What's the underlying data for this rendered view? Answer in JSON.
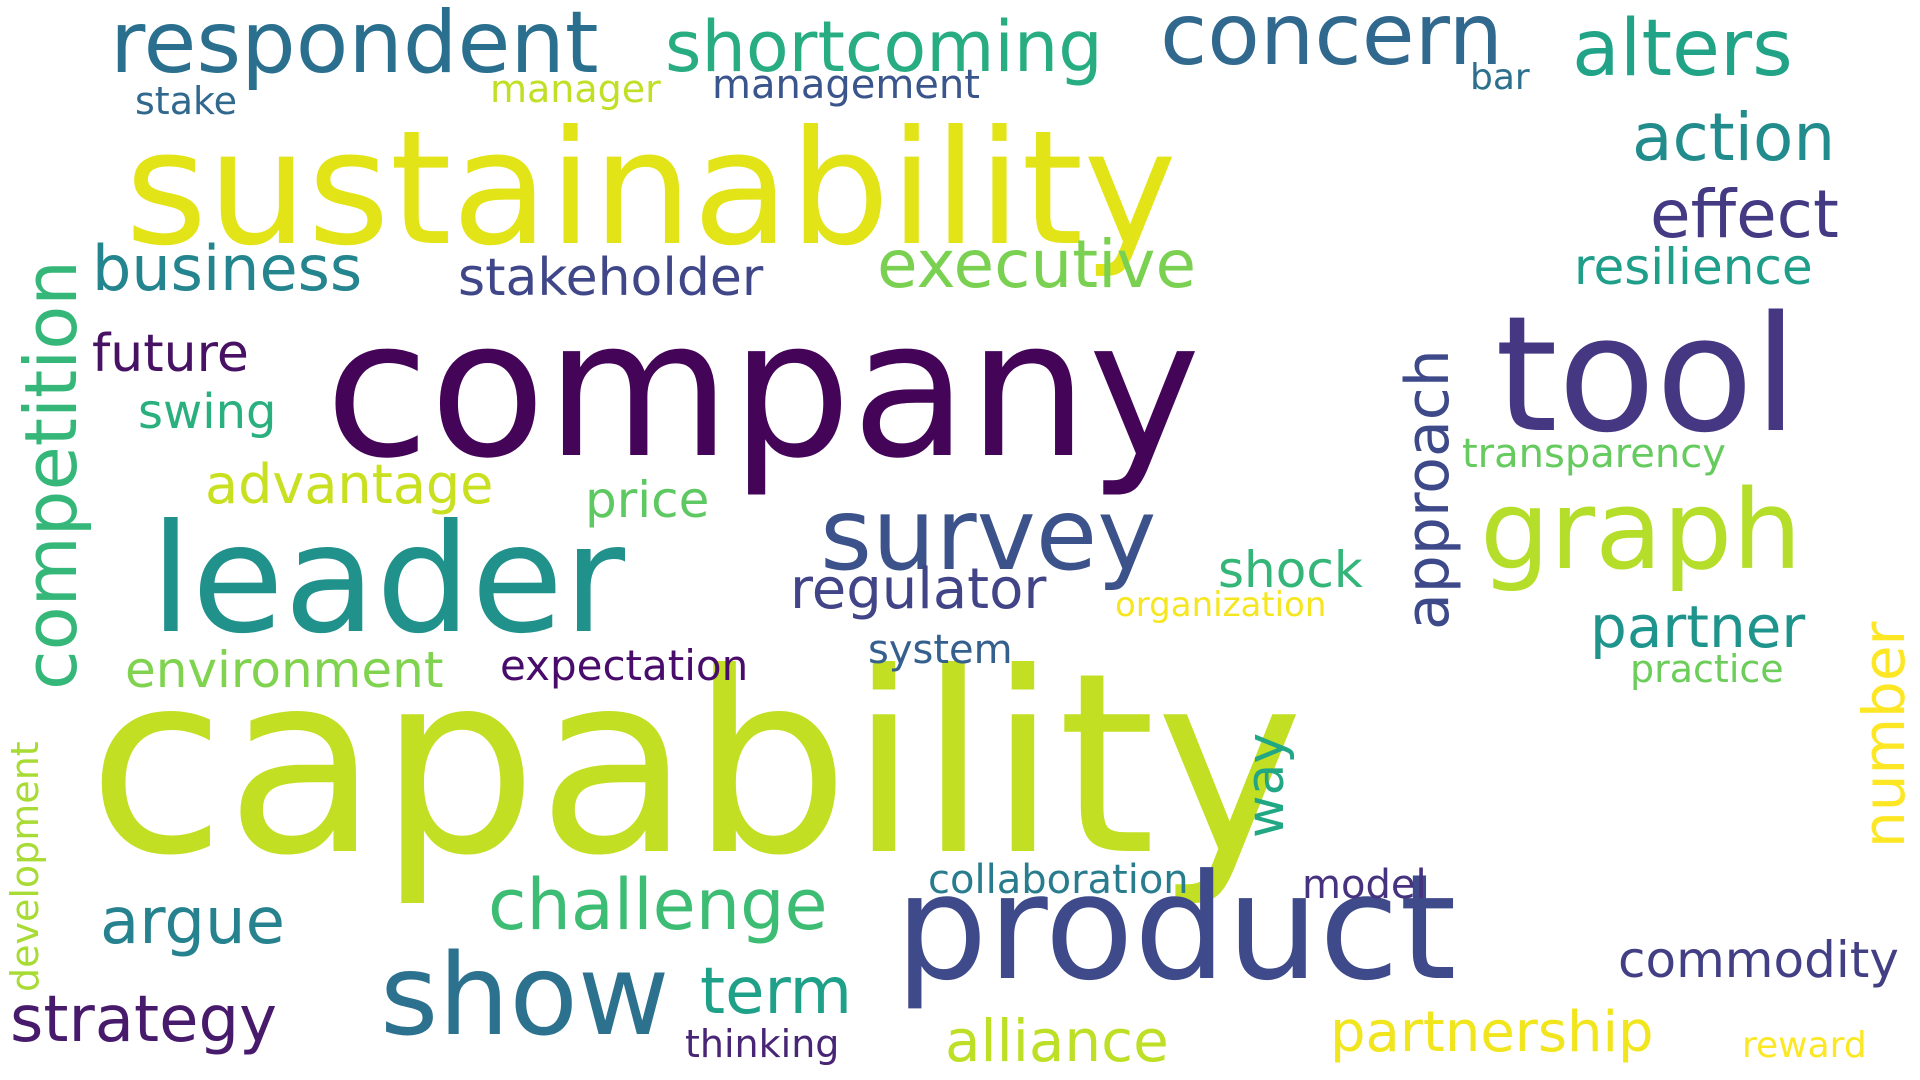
{
  "words": [
    {
      "text": "capability",
      "color": "#c2df23"
    },
    {
      "text": "company",
      "color": "#440559"
    },
    {
      "text": "sustainability",
      "color": "#e3e418"
    },
    {
      "text": "product",
      "color": "#3e4a89"
    },
    {
      "text": "leader",
      "color": "#21918c"
    },
    {
      "text": "tool",
      "color": "#453781"
    },
    {
      "text": "show",
      "color": "#2c728e"
    },
    {
      "text": "graph",
      "color": "#b5de2b"
    },
    {
      "text": "survey",
      "color": "#3b528b"
    },
    {
      "text": "respondent",
      "color": "#2a6f8e"
    },
    {
      "text": "concern",
      "color": "#31688e"
    },
    {
      "text": "alters",
      "color": "#20a386"
    },
    {
      "text": "shortcoming",
      "color": "#27ad81"
    },
    {
      "text": "competition",
      "color": "#35b779"
    },
    {
      "text": "approach",
      "color": "#3e4989"
    },
    {
      "text": "number",
      "color": "#fde725"
    },
    {
      "text": "action",
      "color": "#228c8d"
    },
    {
      "text": "effect",
      "color": "#443a83"
    },
    {
      "text": "executive",
      "color": "#7ad151"
    },
    {
      "text": "business",
      "color": "#25858e"
    },
    {
      "text": "challenge",
      "color": "#3dbc74"
    },
    {
      "text": "strategy",
      "color": "#481a6c"
    },
    {
      "text": "argue",
      "color": "#26828e"
    },
    {
      "text": "term",
      "color": "#1fa088"
    },
    {
      "text": "partnership",
      "color": "#f1e51d"
    },
    {
      "text": "stakeholder",
      "color": "#3f4788"
    },
    {
      "text": "resilience",
      "color": "#1f9e89"
    },
    {
      "text": "regulator",
      "color": "#414487"
    },
    {
      "text": "alliance",
      "color": "#bddf26"
    },
    {
      "text": "advantage",
      "color": "#c8e020"
    },
    {
      "text": "environment",
      "color": "#7fd34e"
    },
    {
      "text": "partner",
      "color": "#1f948c"
    },
    {
      "text": "commodity",
      "color": "#423f85"
    },
    {
      "text": "future",
      "color": "#471164"
    },
    {
      "text": "price",
      "color": "#5ec962"
    },
    {
      "text": "shock",
      "color": "#34b679"
    },
    {
      "text": "swing",
      "color": "#2ab07f"
    },
    {
      "text": "way",
      "color": "#22a785"
    },
    {
      "text": "expectation",
      "color": "#4a0c6b"
    },
    {
      "text": "collaboration",
      "color": "#287c8e"
    },
    {
      "text": "transparency",
      "color": "#65cb5e"
    },
    {
      "text": "management",
      "color": "#39558c"
    },
    {
      "text": "system",
      "color": "#355f8d"
    },
    {
      "text": "model",
      "color": "#46327e"
    },
    {
      "text": "organization",
      "color": "#f6e620"
    },
    {
      "text": "practice",
      "color": "#6ccd5a"
    },
    {
      "text": "thinking",
      "color": "#482575"
    },
    {
      "text": "development",
      "color": "#a8db34"
    },
    {
      "text": "manager",
      "color": "#c0df25"
    },
    {
      "text": "stake",
      "color": "#31688e"
    },
    {
      "text": "bar",
      "color": "#2d708e"
    },
    {
      "text": "reward",
      "color": "#fbe723"
    }
  ]
}
